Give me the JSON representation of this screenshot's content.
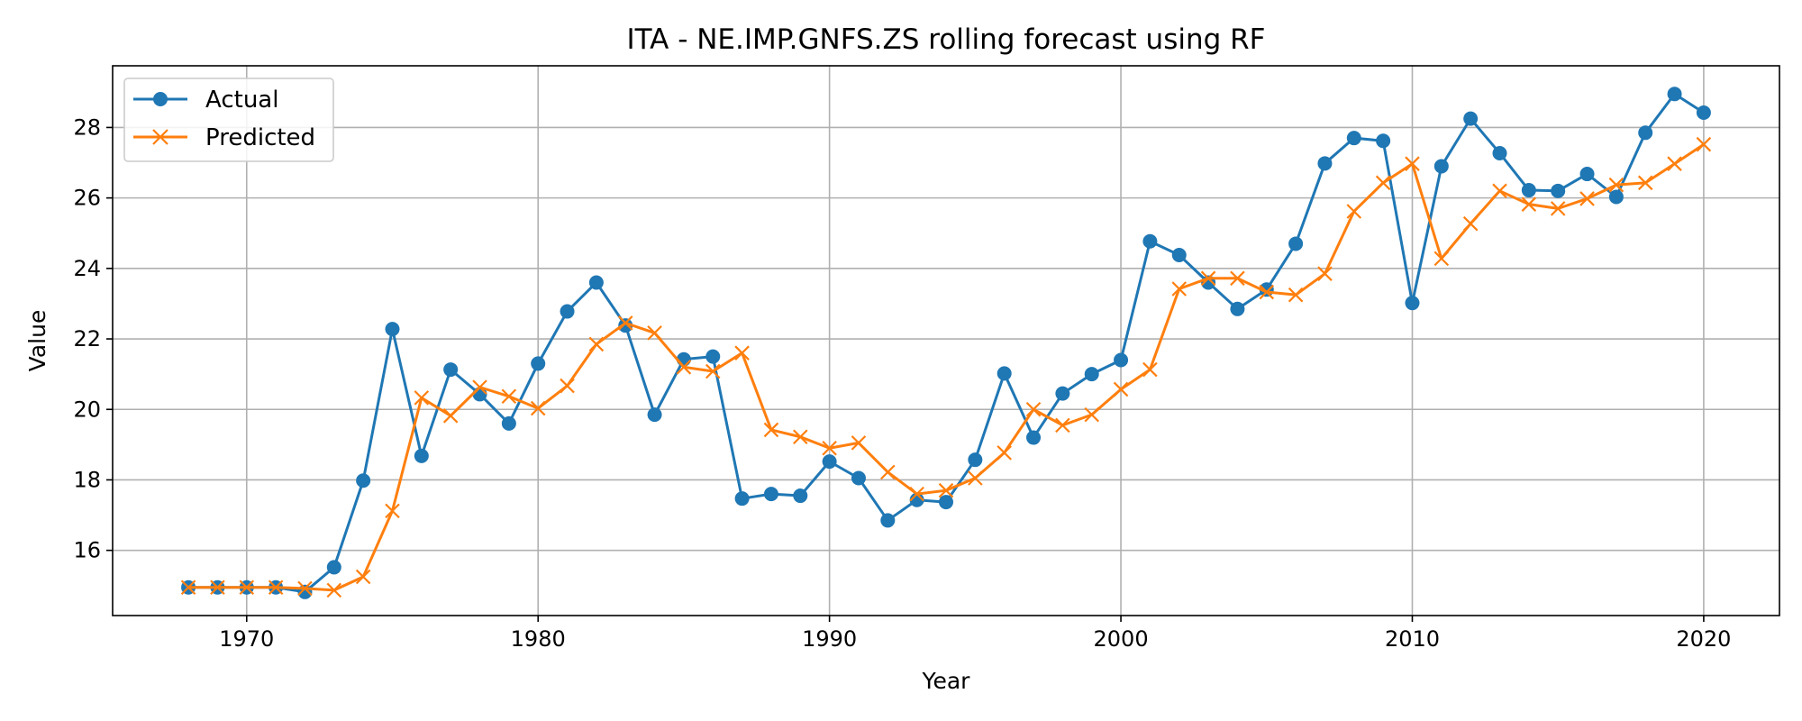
{
  "chart_data": {
    "type": "line",
    "title": "ITA - NE.IMP.GNFS.ZS rolling forecast using RF",
    "xlabel": "Year",
    "ylabel": "Value",
    "xlim": [
      1965.4,
      2022.6
    ],
    "ylim": [
      14.15,
      29.75
    ],
    "xticks": [
      1970,
      1980,
      1990,
      2000,
      2010,
      2020
    ],
    "yticks": [
      16,
      18,
      20,
      22,
      24,
      26,
      28
    ],
    "grid": true,
    "legend_position": "top-left",
    "x": [
      1968,
      1969,
      1970,
      1971,
      1972,
      1973,
      1974,
      1975,
      1976,
      1977,
      1978,
      1979,
      1980,
      1981,
      1982,
      1983,
      1984,
      1985,
      1986,
      1987,
      1988,
      1989,
      1990,
      1991,
      1992,
      1993,
      1994,
      1995,
      1996,
      1997,
      1998,
      1999,
      2000,
      2001,
      2002,
      2003,
      2004,
      2005,
      2006,
      2007,
      2008,
      2009,
      2010,
      2011,
      2012,
      2013,
      2014,
      2015,
      2016,
      2017,
      2018,
      2019,
      2020
    ],
    "series": [
      {
        "name": "Actual",
        "color": "#1f77b4",
        "marker": "circle",
        "values": [
          14.95,
          14.95,
          14.95,
          14.95,
          14.82,
          15.52,
          17.98,
          22.28,
          18.68,
          21.13,
          20.43,
          19.6,
          21.3,
          22.78,
          23.6,
          22.38,
          19.85,
          21.42,
          21.5,
          17.47,
          17.6,
          17.55,
          18.52,
          18.05,
          16.85,
          17.43,
          17.37,
          18.57,
          21.02,
          19.2,
          20.45,
          21.0,
          21.4,
          24.77,
          24.38,
          23.6,
          22.85,
          23.4,
          24.7,
          26.98,
          27.7,
          27.62,
          23.02,
          26.9,
          28.25,
          27.27,
          26.22,
          26.2,
          26.68,
          26.03,
          27.85,
          28.95,
          28.42
        ]
      },
      {
        "name": "Predicted",
        "color": "#ff7f0e",
        "marker": "x",
        "values": [
          14.95,
          14.95,
          14.95,
          14.95,
          14.92,
          14.87,
          15.25,
          17.12,
          20.33,
          19.82,
          20.63,
          20.37,
          20.03,
          20.67,
          21.85,
          22.45,
          22.17,
          21.2,
          21.08,
          21.6,
          19.42,
          19.22,
          18.9,
          19.05,
          18.22,
          17.6,
          17.7,
          18.05,
          18.77,
          20.0,
          19.55,
          19.85,
          20.57,
          21.13,
          23.42,
          23.72,
          23.72,
          23.33,
          23.25,
          23.85,
          25.62,
          26.43,
          26.97,
          24.28,
          25.27,
          26.2,
          25.82,
          25.7,
          25.98,
          26.37,
          26.43,
          26.97,
          27.52
        ]
      }
    ]
  }
}
